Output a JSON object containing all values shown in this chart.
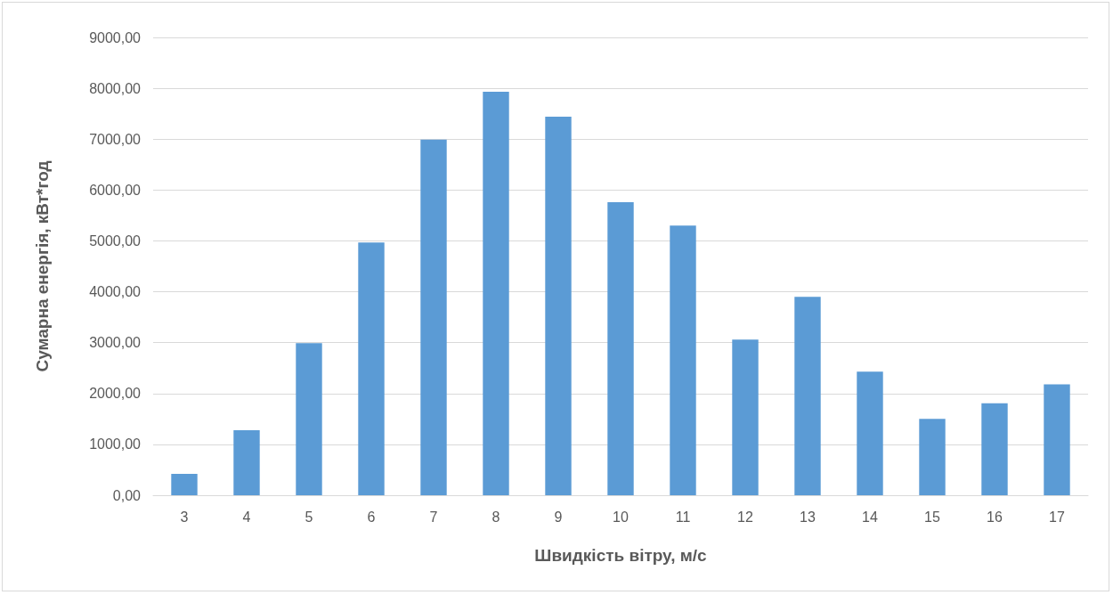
{
  "chart_data": {
    "type": "bar",
    "xlabel": "Швидкість вітру, м/с",
    "ylabel": "Сумарна енергія, кВт*год",
    "categories": [
      "3",
      "4",
      "5",
      "6",
      "7",
      "8",
      "9",
      "10",
      "11",
      "12",
      "13",
      "14",
      "15",
      "16",
      "17"
    ],
    "values": [
      420,
      1280,
      2990,
      4970,
      6990,
      7930,
      7440,
      5760,
      5300,
      3060,
      3900,
      2430,
      1500,
      1810,
      2180
    ],
    "color": "#5b9bd5",
    "ylim": [
      0,
      9000
    ],
    "yticks": [
      {
        "value": 0,
        "label": "0,00"
      },
      {
        "value": 1000,
        "label": "1000,00"
      },
      {
        "value": 2000,
        "label": "2000,00"
      },
      {
        "value": 3000,
        "label": "3000,00"
      },
      {
        "value": 4000,
        "label": "4000,00"
      },
      {
        "value": 5000,
        "label": "5000,00"
      },
      {
        "value": 6000,
        "label": "6000,00"
      },
      {
        "value": 7000,
        "label": "7000,00"
      },
      {
        "value": 8000,
        "label": "8000,00"
      },
      {
        "value": 9000,
        "label": "9000,00"
      }
    ],
    "grid": true
  }
}
